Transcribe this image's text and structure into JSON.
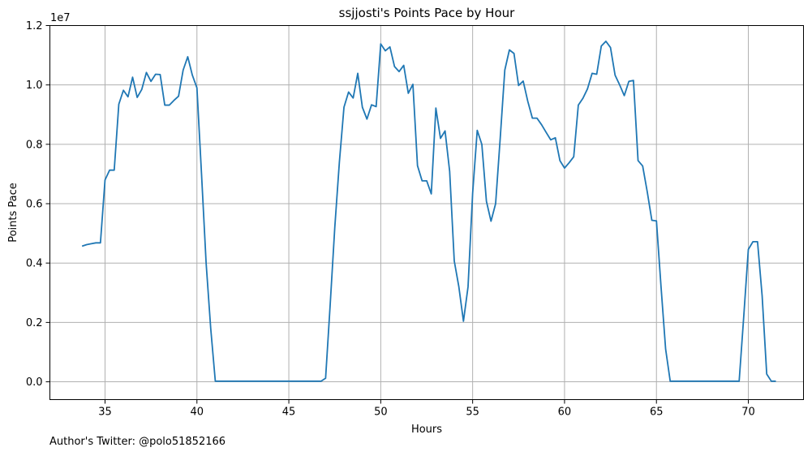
{
  "chart_data": {
    "type": "line",
    "title": "ssjjosti's Points Pace by Hour",
    "xlabel": "Hours",
    "ylabel": "Points Pace",
    "y_multiplier_label": "1e7",
    "xlim": [
      32.0,
      73.0
    ],
    "ylim": [
      -0.6,
      12.0
    ],
    "grid": true,
    "x_ticks": [
      35,
      40,
      45,
      50,
      55,
      60,
      65,
      70
    ],
    "y_ticks": [
      0.0,
      0.2,
      0.4,
      0.6,
      0.8,
      1.0,
      1.2
    ],
    "line_color": "#1f77b4",
    "series": [
      {
        "x": [
          33.75,
          34.0,
          34.25,
          34.5,
          34.75,
          35.0,
          35.25,
          35.5,
          35.75,
          36.0,
          36.25,
          36.5,
          36.75,
          37.0,
          37.25,
          37.5,
          37.75,
          38.0,
          38.25,
          38.5,
          38.75,
          39.0,
          39.25,
          39.5,
          39.75,
          40.0,
          40.25,
          40.5,
          40.75,
          41.0,
          46.75,
          47.0,
          47.25,
          47.5,
          47.75,
          48.0,
          48.25,
          48.5,
          48.75,
          49.0,
          49.25,
          49.5,
          49.75,
          50.0,
          50.25,
          50.5,
          50.75,
          51.0,
          51.25,
          51.5,
          51.75,
          52.0,
          52.25,
          52.5,
          52.75,
          53.0,
          53.25,
          53.5,
          53.75,
          54.0,
          54.25,
          54.5,
          54.75,
          55.0,
          55.25,
          55.5,
          55.75,
          56.0,
          56.25,
          56.5,
          56.75,
          57.0,
          57.25,
          57.5,
          57.75,
          58.0,
          58.25,
          58.5,
          58.75,
          59.0,
          59.25,
          59.5,
          59.75,
          60.0,
          60.25,
          60.5,
          60.75,
          61.0,
          61.25,
          61.5,
          61.75,
          62.0,
          62.25,
          62.5,
          62.75,
          63.0,
          63.25,
          63.5,
          63.75,
          64.0,
          64.25,
          64.5,
          64.75,
          65.0,
          65.25,
          65.5,
          65.75,
          69.5,
          69.75,
          70.0,
          70.25,
          70.5,
          70.75,
          71.0,
          71.25,
          71.5
        ],
        "values": [
          4.57,
          4.62,
          4.65,
          4.68,
          4.68,
          6.8,
          7.13,
          7.13,
          9.35,
          9.82,
          9.6,
          10.26,
          9.58,
          9.85,
          10.42,
          10.12,
          10.36,
          10.35,
          9.32,
          9.32,
          9.48,
          9.62,
          10.5,
          10.95,
          10.33,
          9.9,
          7.0,
          4.0,
          1.8,
          0.02,
          0.02,
          0.12,
          2.6,
          5.2,
          7.4,
          9.25,
          9.76,
          9.56,
          10.39,
          9.25,
          8.85,
          9.33,
          9.27,
          11.38,
          11.15,
          11.28,
          10.62,
          10.45,
          10.66,
          9.72,
          10.02,
          7.28,
          6.77,
          6.77,
          6.33,
          9.22,
          8.2,
          8.45,
          7.09,
          4.07,
          3.2,
          2.04,
          3.2,
          6.35,
          8.47,
          8.0,
          6.08,
          5.41,
          6.0,
          8.2,
          10.5,
          11.18,
          11.06,
          9.98,
          10.13,
          9.45,
          8.88,
          8.88,
          8.66,
          8.4,
          8.15,
          8.22,
          7.45,
          7.2,
          7.38,
          7.58,
          9.32,
          9.55,
          9.87,
          10.39,
          10.36,
          11.31,
          11.47,
          11.26,
          10.33,
          10.0,
          9.64,
          10.12,
          10.15,
          7.45,
          7.27,
          6.4,
          5.44,
          5.42,
          3.2,
          1.1,
          0.02,
          0.02,
          2.2,
          4.46,
          4.72,
          4.72,
          2.9,
          0.26,
          0.02,
          0.02
        ]
      }
    ]
  },
  "footer": {
    "text": "Author's Twitter: @polo51852166"
  }
}
